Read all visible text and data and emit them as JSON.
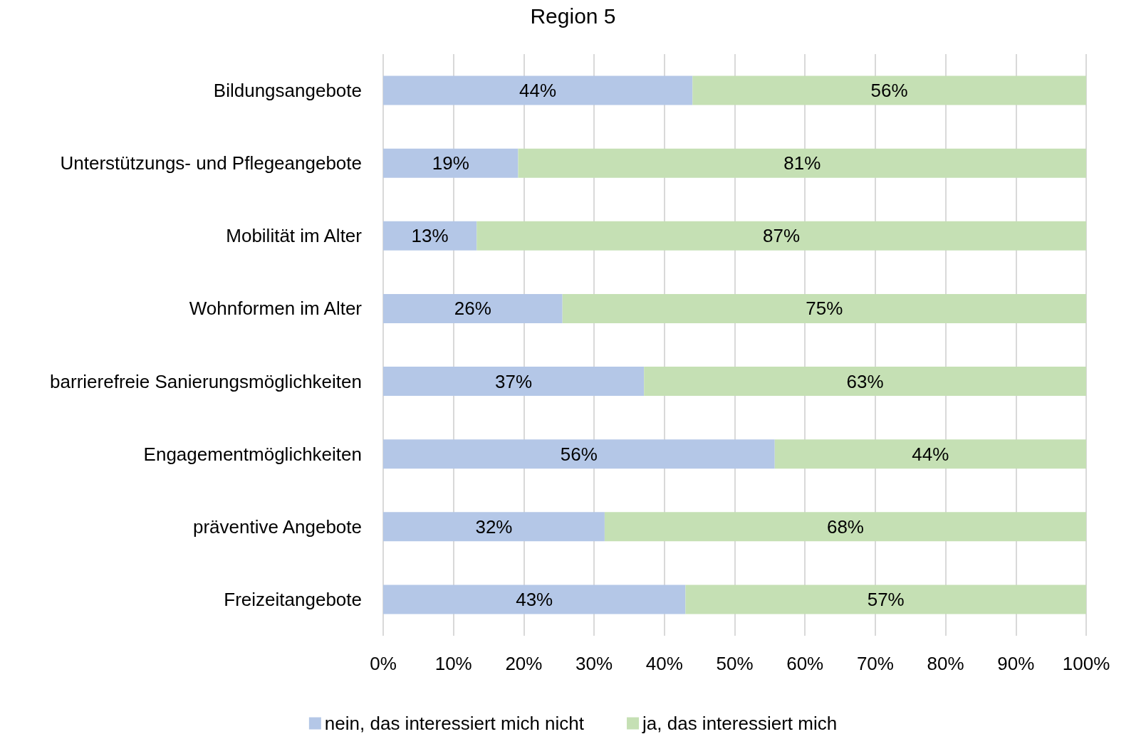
{
  "chart_data": {
    "type": "bar",
    "orientation": "horizontal",
    "stacked": true,
    "title": "Region 5",
    "categories": [
      "Bildungsangebote",
      "Unterstützungs- und Pflegeangebote",
      "Mobilität im Alter",
      "Wohnformen im Alter",
      "barrierefreie Sanierungsmöglichkeiten",
      "Engagementmöglichkeiten",
      "präventive Angebote",
      "Freizeitangebote"
    ],
    "series": [
      {
        "name": "nein, das interessiert mich nicht",
        "color": "#b4c7e7",
        "values": [
          44.0,
          19.2,
          13.3,
          25.5,
          37.1,
          55.7,
          31.5,
          43.0
        ],
        "value_labels": [
          "44%",
          "19%",
          "13%",
          "26%",
          "37%",
          "56%",
          "32%",
          "43%"
        ]
      },
      {
        "name": "ja, das interessiert mich",
        "color": "#c5e0b4",
        "values": [
          56.0,
          80.8,
          86.7,
          74.5,
          62.9,
          44.3,
          68.5,
          57.0
        ],
        "value_labels": [
          "56%",
          "81%",
          "87%",
          "75%",
          "63%",
          "44%",
          "68%",
          "57%"
        ]
      }
    ],
    "xlim": [
      0,
      100
    ],
    "xticks": [
      {
        "value": 0,
        "label": "0%"
      },
      {
        "value": 10,
        "label": "10%"
      },
      {
        "value": 20,
        "label": "20%"
      },
      {
        "value": 30,
        "label": "30%"
      },
      {
        "value": 40,
        "label": "40%"
      },
      {
        "value": 50,
        "label": "50%"
      },
      {
        "value": 60,
        "label": "60%"
      },
      {
        "value": 70,
        "label": "70%"
      },
      {
        "value": 80,
        "label": "80%"
      },
      {
        "value": 90,
        "label": "90%"
      },
      {
        "value": 100,
        "label": "100%"
      }
    ],
    "grid": "x",
    "legend": "bottom"
  }
}
